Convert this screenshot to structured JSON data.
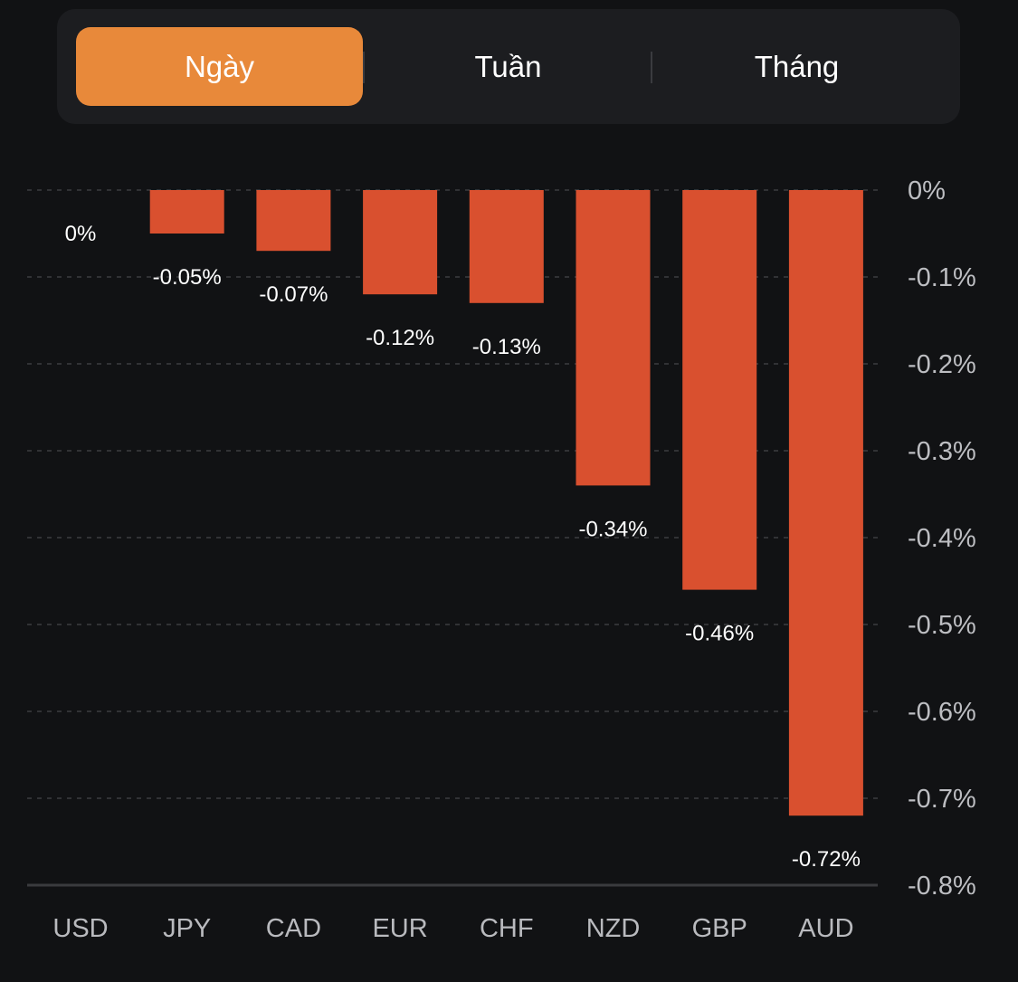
{
  "tabs": {
    "items": [
      {
        "label": "Ngày",
        "active": true
      },
      {
        "label": "Tuần",
        "active": false
      },
      {
        "label": "Tháng",
        "active": false
      }
    ],
    "active_color": "#e8893a"
  },
  "chart_data": {
    "type": "bar",
    "title": "",
    "xlabel": "",
    "ylabel": "",
    "categories": [
      "USD",
      "JPY",
      "CAD",
      "EUR",
      "CHF",
      "NZD",
      "GBP",
      "AUD"
    ],
    "values": [
      0,
      -0.05,
      -0.07,
      -0.12,
      -0.13,
      -0.34,
      -0.46,
      -0.72
    ],
    "value_labels": [
      "0%",
      "-0.05%",
      "-0.07%",
      "-0.12%",
      "-0.13%",
      "-0.34%",
      "-0.46%",
      "-0.72%"
    ],
    "unit": "%",
    "ylim": [
      -0.8,
      0
    ],
    "yticks": [
      0,
      -0.1,
      -0.2,
      -0.3,
      -0.4,
      -0.5,
      -0.6,
      -0.7,
      -0.8
    ],
    "ytick_labels": [
      "0%",
      "-0.1%",
      "-0.2%",
      "-0.3%",
      "-0.4%",
      "-0.5%",
      "-0.6%",
      "-0.7%",
      "-0.8%"
    ],
    "y_axis_side": "right",
    "grid": true,
    "grid_style": "dashed",
    "bar_color": "#d9502f",
    "legend": "none"
  }
}
